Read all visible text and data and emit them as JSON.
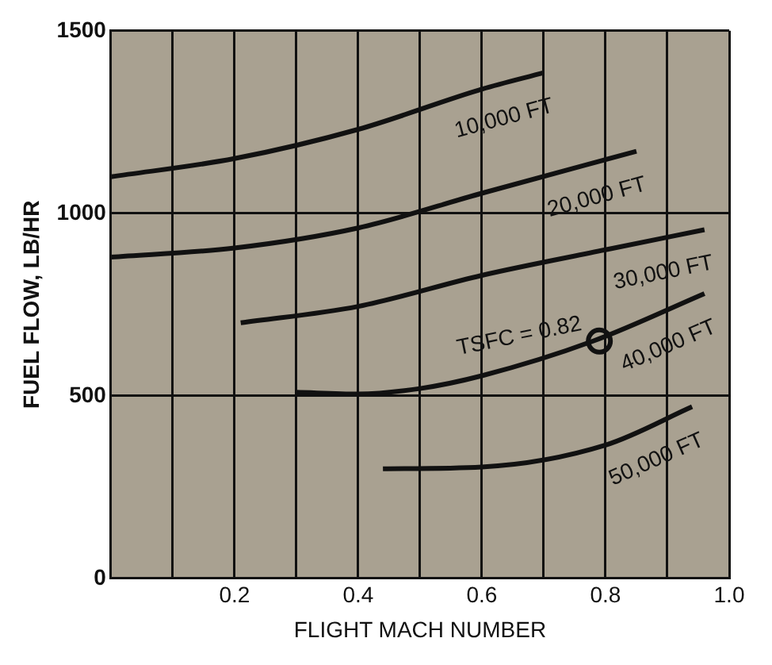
{
  "chart_data": {
    "type": "line",
    "xlabel": "FLIGHT MACH NUMBER",
    "ylabel": "FUEL FLOW, LB/HR",
    "xlim": [
      0,
      1.0
    ],
    "ylim": [
      0,
      1500
    ],
    "xticks": [
      {
        "value": 0.1,
        "label": null
      },
      0.2,
      {
        "value": 0.3,
        "label": null
      },
      0.4,
      {
        "value": 0.5,
        "label": null
      },
      0.6,
      {
        "value": 0.7,
        "label": null
      },
      0.8,
      {
        "value": 0.9,
        "label": null
      },
      {
        "value": 1,
        "label": "1.0"
      }
    ],
    "yticks": [
      0,
      500,
      1000,
      1500
    ],
    "grid": true,
    "legend": false,
    "line_style": "solid",
    "marker": "none",
    "series": [
      {
        "name": "10,000 FT",
        "color": "#111111",
        "x": [
          0,
          0.2,
          0.4,
          0.6,
          0.7
        ],
        "values": [
          1100,
          1150,
          1230,
          1340,
          1385
        ]
      },
      {
        "name": "20,000 FT",
        "color": "#111111",
        "x": [
          0,
          0.2,
          0.4,
          0.6,
          0.85
        ],
        "values": [
          880,
          905,
          960,
          1055,
          1170
        ]
      },
      {
        "name": "30,000 FT",
        "color": "#111111",
        "x": [
          0.21,
          0.4,
          0.6,
          0.8,
          0.96
        ],
        "values": [
          700,
          745,
          830,
          900,
          955
        ]
      },
      {
        "name": "40,000 FT",
        "color": "#111111",
        "x": [
          0.3,
          0.4,
          0.5,
          0.6,
          0.78,
          0.96
        ],
        "values": [
          510,
          505,
          520,
          555,
          650,
          780
        ]
      },
      {
        "name": "50,000 FT",
        "color": "#111111",
        "x": [
          0.44,
          0.6,
          0.8,
          0.94
        ],
        "values": [
          300,
          305,
          365,
          470
        ]
      },
      {
        "type": "scatter",
        "marker": "circle",
        "color": "#111111",
        "x": [
          0.79
        ],
        "values": [
          650
        ]
      }
    ],
    "annotations": [
      {
        "text": "TSFC = 0.82",
        "x": 0.79,
        "y": 650
      }
    ]
  }
}
